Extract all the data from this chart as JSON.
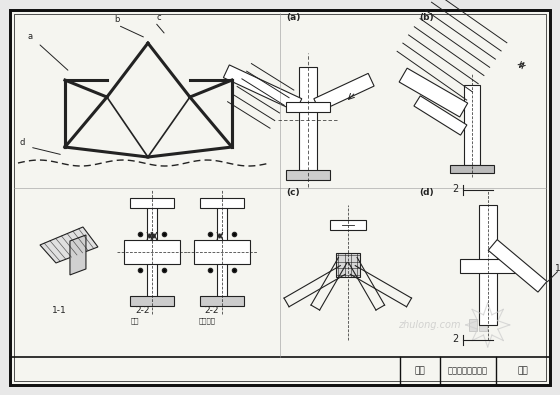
{
  "bg_color": "#e8e8e8",
  "drawing_bg": "#f5f5f0",
  "border_color": "#333333",
  "line_color": "#222222",
  "title_text": "图名",
  "drawing_name": "三钰拱式天窗节点",
  "page_label": "图页",
  "label_a": "a",
  "label_b": "b",
  "label_c": "c",
  "label_d": "d",
  "section_1_1": "1-1",
  "section_2_2a": "2-2",
  "section_2_2a_sub": "焂接",
  "section_2_2b": "2-2",
  "section_2_2b_sub": "（梯形）",
  "sub_a": "(a)",
  "sub_b": "(b)",
  "sub_c": "(c)",
  "sub_d": "(d)",
  "watermark": "zhulong.com"
}
